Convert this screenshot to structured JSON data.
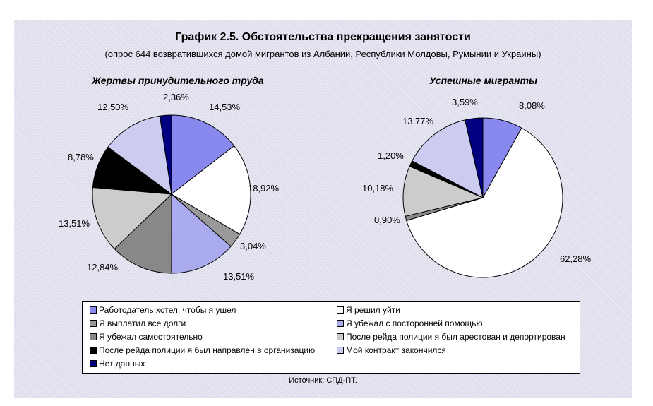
{
  "title": "График 2.5. Обстоятельства прекращения занятости",
  "subtitle": "(опрос 644 возвратившихся домой мигрантов из Албании, Республики Молдовы, Румынии и Украины)",
  "source": "Источник: СПД-ПТ.",
  "colors": {
    "background": "#dcdcec",
    "wanted_fired": "#8888ee",
    "decided_to_leave": "#ffffff",
    "paid_debts": "#999999",
    "fled_with_help": "#aaaaee",
    "fled_alone": "#888888",
    "arrested_deported": "#cccccc",
    "sent_to_organization": "#000000",
    "contract_ended": "#ccccf0",
    "no_data": "#000080"
  },
  "legend": {
    "items": [
      {
        "label": "Работодатель хотел, чтобы я ушел",
        "color": "#8888ee"
      },
      {
        "label": "Я решил уйти",
        "color": "#ffffff"
      },
      {
        "label": "Я выплатил все долги",
        "color": "#999999"
      },
      {
        "label": "Я убежал с посторонней помощью",
        "color": "#aaaaee"
      },
      {
        "label": "Я убежал самостоятельно",
        "color": "#888888"
      },
      {
        "label": "После рейда полиции я был арестован и депортирован",
        "color": "#cccccc"
      },
      {
        "label": "После рейда полиции я был направлен в организацию",
        "color": "#000000"
      },
      {
        "label": "Мой контракт закончился",
        "color": "#ccccf0"
      },
      {
        "label": "Нет данных",
        "color": "#000080"
      }
    ]
  },
  "chart_data": [
    {
      "type": "pie",
      "title": "Жертвы принудительного труда",
      "legend_position": "bottom",
      "slices": [
        {
          "category": "Работодатель хотел, чтобы я ушел",
          "value": 14.53,
          "label": "14,53%",
          "color": "#8888ee"
        },
        {
          "category": "Я решил уйти",
          "value": 18.92,
          "label": "18,92%",
          "color": "#ffffff"
        },
        {
          "category": "Я выплатил все долги",
          "value": 3.04,
          "label": "3,04%",
          "color": "#999999"
        },
        {
          "category": "Я убежал с посторонней помощью",
          "value": 13.51,
          "label": "13,51%",
          "color": "#aaaaee"
        },
        {
          "category": "Я убежал самостоятельно",
          "value": 12.84,
          "label": "12,84%",
          "color": "#888888"
        },
        {
          "category": "После рейда полиции я был арестован и депортирован",
          "value": 13.51,
          "label": "13,51%",
          "color": "#cccccc"
        },
        {
          "category": "После рейда полиции я был направлен в организацию",
          "value": 8.78,
          "label": "8,78%",
          "color": "#000000"
        },
        {
          "category": "Мой контракт закончился",
          "value": 12.5,
          "label": "12,50%",
          "color": "#ccccf0"
        },
        {
          "category": "Нет данных",
          "value": 2.36,
          "label": "2,36%",
          "color": "#000080"
        }
      ]
    },
    {
      "type": "pie",
      "title": "Успешные мигранты",
      "legend_position": "bottom",
      "slices": [
        {
          "category": "Работодатель хотел, чтобы я ушел",
          "value": 8.08,
          "label": "8,08%",
          "color": "#8888ee"
        },
        {
          "category": "Я решил уйти",
          "value": 62.28,
          "label": "62,28%",
          "color": "#ffffff"
        },
        {
          "category": "Я выплатил все долги",
          "value": 0.0,
          "label": "",
          "color": "#999999"
        },
        {
          "category": "Я убежал с посторонней помощью",
          "value": 0.0,
          "label": "",
          "color": "#aaaaee"
        },
        {
          "category": "Я убежал самостоятельно",
          "value": 0.9,
          "label": "0,90%",
          "color": "#888888"
        },
        {
          "category": "После рейда полиции я был арестован и депортирован",
          "value": 10.18,
          "label": "10,18%",
          "color": "#cccccc"
        },
        {
          "category": "После рейда полиции я был направлен в организацию",
          "value": 1.2,
          "label": "1,20%",
          "color": "#000000"
        },
        {
          "category": "Мой контракт закончился",
          "value": 13.77,
          "label": "13,77%",
          "color": "#ccccf0"
        },
        {
          "category": "Нет данных",
          "value": 3.59,
          "label": "3,59%",
          "color": "#000080"
        }
      ]
    }
  ]
}
